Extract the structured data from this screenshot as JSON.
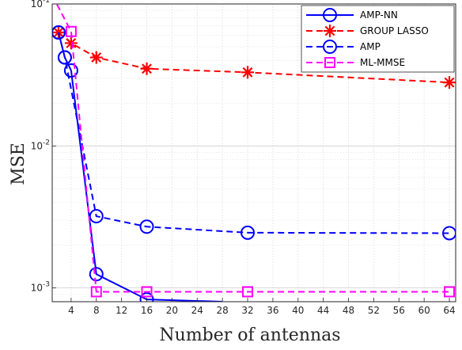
{
  "chart_data": {
    "type": "line",
    "title": "",
    "xlabel": "Number of antennas",
    "ylabel": "MSE",
    "xlim": [
      1,
      65
    ],
    "ylim": [
      0.0008,
      0.1
    ],
    "yscale": "log",
    "grid": true,
    "legend_position": "top-right",
    "x_ticks": [
      4,
      8,
      12,
      16,
      20,
      24,
      28,
      32,
      36,
      40,
      44,
      48,
      52,
      56,
      60,
      64
    ],
    "y_ticks": [
      {
        "value": 0.001,
        "label": "10-3"
      },
      {
        "value": 0.01,
        "label": "10-2"
      },
      {
        "value": 0.1,
        "label": "10-1"
      }
    ],
    "series": [
      {
        "name": "AMP-NN",
        "color": "#0000ff",
        "dash": "solid",
        "marker": "circle",
        "x": [
          2,
          3,
          4,
          8,
          16,
          28
        ],
        "y": [
          0.063,
          0.042,
          0.034,
          0.00125,
          0.00083,
          0.0008
        ],
        "marker_x": [
          2,
          3,
          4,
          8,
          16
        ]
      },
      {
        "name": "GROUP LASSO",
        "color": "#ff0000",
        "dash": "dashed",
        "marker": "star",
        "x": [
          2,
          4,
          8,
          16,
          32,
          64
        ],
        "y": [
          0.063,
          0.053,
          0.042,
          0.035,
          0.033,
          0.028
        ]
      },
      {
        "name": "AMP",
        "color": "#0000ff",
        "dash": "dashed",
        "marker": "circle",
        "x": [
          2,
          3,
          8,
          16,
          32,
          64
        ],
        "y": [
          0.063,
          0.042,
          0.0032,
          0.0027,
          0.00245,
          0.00243
        ]
      },
      {
        "name": "ML-MMSE",
        "color": "#ff00ff",
        "dash": "dashed",
        "marker": "square",
        "x": [
          1,
          4,
          8,
          16,
          32,
          64
        ],
        "y": [
          0.115,
          0.064,
          0.00094,
          0.00094,
          0.00094,
          0.00094
        ],
        "marker_x": [
          4,
          8,
          16,
          32,
          64
        ]
      }
    ]
  }
}
